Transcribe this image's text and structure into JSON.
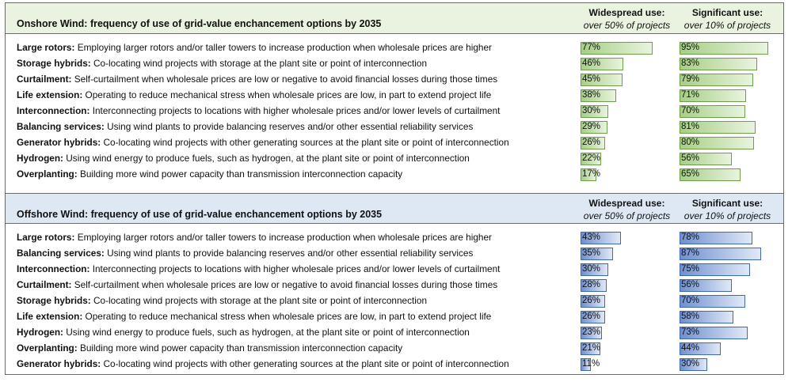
{
  "chart_data": [
    {
      "type": "bar",
      "title": "Onshore Wind: frequency of use of grid-value enchancement options by 2035",
      "columns": [
        {
          "key": "widespread",
          "heading": "Widespread use:",
          "subheading": "over 50% of projects"
        },
        {
          "key": "significant",
          "heading": "Significant use:",
          "subheading": "over 10% of projects"
        }
      ],
      "rows": [
        {
          "name": "Large rotors:",
          "desc": " Employing larger rotors and/or taller towers to increase production when wholesale prices are higher",
          "widespread": 77,
          "significant": 95
        },
        {
          "name": "Storage hybrids:",
          "desc": " Co-locating wind projects with storage at the plant site or point of interconnection",
          "widespread": 46,
          "significant": 83
        },
        {
          "name": "Curtailment:",
          "desc": " Self-curtailment when wholesale prices are low or negative to avoid financial losses during those times",
          "widespread": 45,
          "significant": 79
        },
        {
          "name": "Life extension:",
          "desc": " Operating to reduce mechanical stress when wholesale prices are low, in part to extend project life",
          "widespread": 38,
          "significant": 71
        },
        {
          "name": "Interconnection:",
          "desc": " Interconnecting projects to locations with higher wholesale prices and/or lower levels of curtailment",
          "widespread": 30,
          "significant": 70
        },
        {
          "name": "Balancing services:",
          "desc": " Using wind plants to provide balancing reserves and/or other essential reliability services",
          "widespread": 29,
          "significant": 81
        },
        {
          "name": "Generator hybrids:",
          "desc": " Co-locating wind projects with other generating sources at the plant site or point of interconnection",
          "widespread": 26,
          "significant": 80
        },
        {
          "name": "Hydrogen:",
          "desc": " Using wind energy to produce fuels, such as hydrogen, at the plant site or point of interconnection",
          "widespread": 22,
          "significant": 56
        },
        {
          "name": "Overplanting:",
          "desc": " Building more wind power capacity than transmission interconnection capacity",
          "widespread": 17,
          "significant": 65
        }
      ],
      "color": "#a6cf86",
      "border": "#6e9e4b"
    },
    {
      "type": "bar",
      "title": "Offshore Wind: frequency of use of grid-value enchancement options by 2035",
      "columns": [
        {
          "key": "widespread",
          "heading": "Widespread use:",
          "subheading": "over 50% of projects"
        },
        {
          "key": "significant",
          "heading": "Significant use:",
          "subheading": "over 10% of projects"
        }
      ],
      "rows": [
        {
          "name": "Large rotors:",
          "desc": " Employing larger rotors and/or taller towers to increase production when wholesale prices are higher",
          "widespread": 43,
          "significant": 78
        },
        {
          "name": "Balancing services:",
          "desc": " Using wind plants to provide balancing reserves and/or other essential reliability services",
          "widespread": 35,
          "significant": 87
        },
        {
          "name": "Interconnection:",
          "desc": " Interconnecting projects to locations with higher wholesale prices and/or lower levels of curtailment",
          "widespread": 30,
          "significant": 75
        },
        {
          "name": "Curtailment:",
          "desc": " Self-curtailment when wholesale prices are low or negative to avoid financial losses during those times",
          "widespread": 28,
          "significant": 56
        },
        {
          "name": "Storage hybrids:",
          "desc": " Co-locating wind projects with storage at the plant site or point of interconnection",
          "widespread": 26,
          "significant": 70
        },
        {
          "name": "Life extension:",
          "desc": " Operating to reduce mechanical stress when wholesale prices are low, in part to extend project life",
          "widespread": 26,
          "significant": 58
        },
        {
          "name": "Hydrogen:",
          "desc": " Using wind energy to produce fuels, such as hydrogen, at the plant site or point of interconnection",
          "widespread": 23,
          "significant": 73
        },
        {
          "name": "Overplanting:",
          "desc": " Building more wind power capacity than transmission interconnection capacity",
          "widespread": 21,
          "significant": 44
        },
        {
          "name": "Generator hybrids:",
          "desc": " Co-locating wind projects with other generating sources at the plant site or point of interconnection",
          "widespread": 11,
          "significant": 30
        }
      ],
      "color": "#6f90cf",
      "border": "#4068b0"
    }
  ]
}
